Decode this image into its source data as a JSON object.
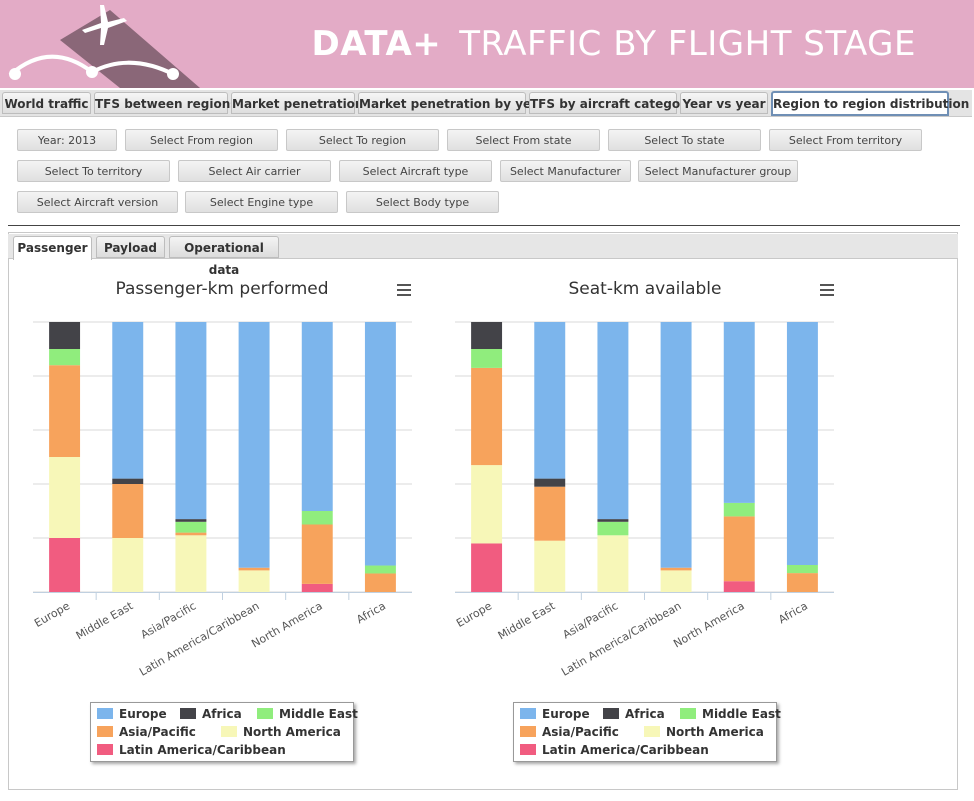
{
  "header": {
    "brand": "DATA+",
    "title": "TRAFFIC BY FLIGHT STAGE"
  },
  "nav": {
    "tabs": [
      {
        "label": "World traffic"
      },
      {
        "label": "TFS between regions"
      },
      {
        "label": "Market penetration"
      },
      {
        "label": "Market penetration by year"
      },
      {
        "label": "TFS by aircraft category"
      },
      {
        "label": "Year vs year"
      },
      {
        "label": "Region to region distribution",
        "active": true
      }
    ]
  },
  "filters": [
    "Year: 2013",
    "Select From region",
    "Select To region",
    "Select From state",
    "Select To state",
    "Select From territory",
    "Select To territory",
    "Select Air carrier",
    "Select Aircraft type",
    "Select Manufacturer",
    "Select Manufacturer group",
    "Select Aircraft version",
    "Select Engine type",
    "Select Body type"
  ],
  "subtabs": [
    {
      "label": "Passenger",
      "active": true
    },
    {
      "label": "Payload"
    },
    {
      "label": "Operational data"
    }
  ],
  "colors": {
    "Europe": "#7cb5ec",
    "Africa": "#434348",
    "Middle East": "#90ed7d",
    "Asia/Pacific": "#f7a35c",
    "North America": "#f7f7b8",
    "Latin America/Caribbean": "#f15c80"
  },
  "chart_data": [
    {
      "type": "bar",
      "stacking": "percent",
      "title": "Passenger-km performed",
      "categories": [
        "Europe",
        "Middle East",
        "Asia/Pacific",
        "Latin America/Caribbean",
        "North America",
        "Africa"
      ],
      "series": [
        {
          "name": "Europe",
          "values": [
            0,
            58,
            73,
            91,
            70,
            92
          ]
        },
        {
          "name": "Africa",
          "values": [
            10,
            2,
            1,
            0,
            0,
            0
          ]
        },
        {
          "name": "Middle East",
          "values": [
            6,
            0,
            4,
            0,
            5,
            3
          ]
        },
        {
          "name": "Asia/Pacific",
          "values": [
            34,
            20,
            1,
            1,
            22,
            7
          ]
        },
        {
          "name": "North America",
          "values": [
            30,
            20,
            21,
            8,
            0,
            0
          ]
        },
        {
          "name": "Latin America/Caribbean",
          "values": [
            20,
            0,
            0,
            0,
            3,
            0
          ]
        }
      ],
      "ylim": [
        0,
        100
      ],
      "grid": true,
      "legend": "bottom"
    },
    {
      "type": "bar",
      "stacking": "percent",
      "title": "Seat-km available",
      "categories": [
        "Europe",
        "Middle East",
        "Asia/Pacific",
        "Latin America/Caribbean",
        "North America",
        "Africa"
      ],
      "series": [
        {
          "name": "Europe",
          "values": [
            0,
            58,
            73,
            91,
            67,
            90
          ]
        },
        {
          "name": "Africa",
          "values": [
            10,
            3,
            1,
            0,
            0,
            0
          ]
        },
        {
          "name": "Middle East",
          "values": [
            7,
            0,
            5,
            0,
            5,
            3
          ]
        },
        {
          "name": "Asia/Pacific",
          "values": [
            36,
            20,
            0,
            1,
            24,
            7
          ]
        },
        {
          "name": "North America",
          "values": [
            29,
            19,
            21,
            8,
            0,
            0
          ]
        },
        {
          "name": "Latin America/Caribbean",
          "values": [
            18,
            0,
            0,
            0,
            4,
            0
          ]
        }
      ],
      "ylim": [
        0,
        100
      ],
      "grid": true,
      "legend": "bottom"
    }
  ]
}
